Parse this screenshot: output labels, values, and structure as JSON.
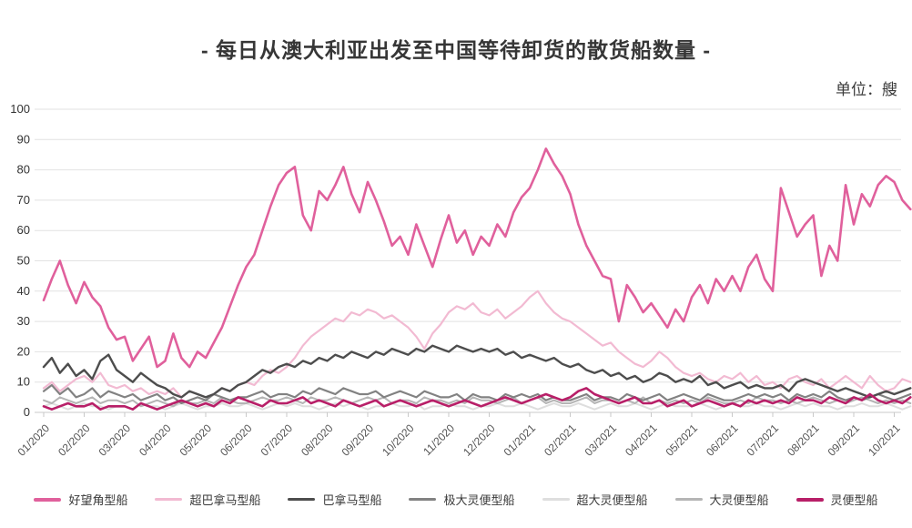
{
  "title": "- 每日从澳大利亚出发至中国等待卸货的散货船数量 -",
  "unit_label": "单位：艘",
  "chart_data": {
    "type": "line",
    "title": "每日从澳大利亚出发至中国等待卸货的散货船数量",
    "unit": "艘",
    "ylim": [
      0,
      100
    ],
    "y_ticks": [
      0,
      10,
      20,
      30,
      40,
      50,
      60,
      70,
      80,
      90,
      100
    ],
    "x_tick_labels": [
      "01/2020",
      "02/2020",
      "03/2020",
      "04/2020",
      "05/2020",
      "06/2020",
      "07/2020",
      "08/2020",
      "09/2020",
      "10/2020",
      "11/2020",
      "12/2020",
      "01/2021",
      "02/2021",
      "03/2021",
      "04/2021",
      "05/2021",
      "06/2021",
      "07/2021",
      "08/2021",
      "09/2021",
      "10/2021"
    ],
    "points_per_month": 5,
    "grid": "horizontal",
    "legend_position": "bottom",
    "grid_color": "#e2e2e2",
    "axis_color": "#c9c9c9",
    "series": [
      {
        "name": "好望角型船",
        "color": "#e0609c",
        "width": 2.6,
        "values": [
          37,
          44,
          50,
          42,
          36,
          43,
          38,
          35,
          28,
          24,
          25,
          17,
          21,
          25,
          15,
          17,
          26,
          18,
          15,
          20,
          18,
          23,
          28,
          35,
          42,
          48,
          52,
          60,
          68,
          75,
          79,
          81,
          65,
          60,
          73,
          70,
          75,
          81,
          72,
          66,
          76,
          70,
          63,
          55,
          58,
          52,
          62,
          55,
          48,
          57,
          65,
          56,
          60,
          52,
          58,
          55,
          62,
          58,
          66,
          71,
          74,
          80,
          87,
          82,
          78,
          72,
          62,
          55,
          50,
          45,
          44,
          30,
          42,
          38,
          33,
          36,
          32,
          28,
          34,
          30,
          38,
          42,
          36,
          44,
          40,
          45,
          40,
          48,
          52,
          44,
          40,
          74,
          66,
          58,
          62,
          65,
          45,
          55,
          50,
          75,
          62,
          72,
          68,
          75,
          78,
          76,
          70,
          67
        ]
      },
      {
        "name": "超巴拿马型船",
        "color": "#f2bad2",
        "width": 2.2,
        "values": [
          8,
          10,
          7,
          9,
          11,
          12,
          10,
          13,
          9,
          8,
          9,
          7,
          8,
          6,
          7,
          6,
          8,
          5,
          7,
          6,
          5,
          6,
          8,
          7,
          9,
          10,
          9,
          12,
          14,
          13,
          15,
          18,
          22,
          25,
          27,
          29,
          31,
          30,
          33,
          32,
          34,
          33,
          31,
          32,
          30,
          28,
          25,
          21,
          26,
          29,
          33,
          35,
          34,
          36,
          33,
          32,
          34,
          31,
          33,
          35,
          38,
          40,
          36,
          33,
          31,
          30,
          28,
          26,
          24,
          22,
          23,
          20,
          18,
          16,
          15,
          17,
          20,
          18,
          15,
          13,
          12,
          13,
          11,
          10,
          12,
          11,
          13,
          10,
          12,
          9,
          10,
          8,
          11,
          12,
          10,
          9,
          11,
          8,
          10,
          12,
          10,
          8,
          12,
          9,
          7,
          8,
          11,
          10
        ]
      },
      {
        "name": "巴拿马型船",
        "color": "#4d4d4d",
        "width": 2.4,
        "values": [
          15,
          18,
          13,
          16,
          12,
          14,
          11,
          17,
          19,
          14,
          12,
          10,
          13,
          11,
          9,
          8,
          6,
          5,
          7,
          6,
          5,
          6,
          8,
          7,
          9,
          10,
          12,
          14,
          13,
          15,
          16,
          15,
          17,
          16,
          18,
          17,
          19,
          18,
          20,
          19,
          18,
          20,
          19,
          21,
          20,
          19,
          21,
          20,
          22,
          21,
          20,
          22,
          21,
          20,
          21,
          20,
          21,
          19,
          20,
          18,
          19,
          18,
          17,
          18,
          16,
          15,
          16,
          14,
          13,
          14,
          12,
          13,
          11,
          12,
          10,
          11,
          13,
          12,
          10,
          11,
          10,
          12,
          9,
          10,
          8,
          9,
          10,
          8,
          9,
          8,
          8,
          9,
          7,
          10,
          11,
          10,
          9,
          8,
          7,
          8,
          7,
          6,
          5,
          6,
          7,
          6,
          7,
          8
        ]
      },
      {
        "name": "极大灵便型船",
        "color": "#828282",
        "width": 2.2,
        "values": [
          7,
          9,
          6,
          8,
          5,
          6,
          8,
          5,
          7,
          6,
          5,
          6,
          4,
          5,
          6,
          4,
          5,
          3,
          4,
          5,
          4,
          6,
          5,
          4,
          5,
          5,
          6,
          7,
          5,
          6,
          6,
          5,
          7,
          6,
          8,
          7,
          6,
          8,
          7,
          6,
          6,
          7,
          5,
          6,
          7,
          6,
          5,
          7,
          6,
          5,
          5,
          6,
          4,
          6,
          5,
          5,
          4,
          6,
          5,
          6,
          5,
          6,
          4,
          5,
          4,
          4,
          5,
          6,
          4,
          5,
          5,
          4,
          6,
          5,
          4,
          5,
          6,
          4,
          5,
          6,
          5,
          4,
          6,
          5,
          4,
          4,
          5,
          6,
          5,
          6,
          5,
          6,
          4,
          6,
          5,
          6,
          5,
          7,
          5,
          4,
          5,
          4,
          5,
          6,
          5,
          4,
          5,
          6
        ]
      },
      {
        "name": "超大灵便型船",
        "color": "#dedede",
        "width": 2,
        "values": [
          2,
          3,
          2,
          1,
          2,
          3,
          2,
          2,
          1,
          2,
          2,
          1,
          3,
          2,
          2,
          1,
          2,
          3,
          2,
          1,
          2,
          2,
          3,
          2,
          2,
          3,
          2,
          1,
          2,
          3,
          2,
          3,
          2,
          2,
          1,
          2,
          3,
          2,
          3,
          2,
          1,
          2,
          2,
          3,
          2,
          2,
          3,
          1,
          2,
          2,
          3,
          2,
          2,
          1,
          2,
          2,
          3,
          2,
          2,
          3,
          2,
          1,
          2,
          3,
          2,
          2,
          3,
          2,
          1,
          2,
          3,
          2,
          2,
          3,
          2,
          1,
          2,
          3,
          2,
          2,
          2,
          3,
          2,
          1,
          2,
          3,
          2,
          2,
          3,
          2,
          2,
          1,
          2,
          3,
          2,
          3,
          2,
          2,
          1,
          2,
          2,
          3,
          2,
          2,
          3,
          2,
          1,
          2
        ]
      },
      {
        "name": "大灵便型船",
        "color": "#b5b5b5",
        "width": 2,
        "values": [
          4,
          3,
          5,
          4,
          3,
          4,
          5,
          3,
          4,
          4,
          3,
          4,
          2,
          3,
          4,
          3,
          2,
          4,
          3,
          3,
          4,
          3,
          5,
          4,
          3,
          3,
          4,
          5,
          4,
          4,
          5,
          4,
          3,
          5,
          4,
          4,
          5,
          4,
          3,
          4,
          5,
          4,
          5,
          3,
          4,
          4,
          3,
          5,
          4,
          4,
          3,
          4,
          3,
          5,
          4,
          4,
          3,
          4,
          5,
          3,
          4,
          5,
          3,
          4,
          3,
          3,
          4,
          5,
          3,
          4,
          4,
          3,
          4,
          3,
          5,
          3,
          4,
          3,
          4,
          3,
          4,
          3,
          5,
          4,
          3,
          3,
          4,
          3,
          5,
          4,
          4,
          3,
          4,
          3,
          4,
          5,
          4,
          3,
          4,
          3,
          4,
          5,
          4,
          3,
          4,
          3,
          4,
          3
        ]
      },
      {
        "name": "灵便型船",
        "color": "#b81f68",
        "width": 2.6,
        "values": [
          2,
          1,
          2,
          3,
          2,
          2,
          3,
          1,
          2,
          2,
          2,
          1,
          3,
          2,
          1,
          2,
          3,
          4,
          3,
          2,
          3,
          2,
          4,
          3,
          5,
          4,
          3,
          2,
          4,
          3,
          3,
          4,
          5,
          3,
          4,
          3,
          2,
          4,
          3,
          2,
          3,
          4,
          2,
          3,
          4,
          3,
          2,
          3,
          4,
          3,
          2,
          3,
          4,
          3,
          2,
          3,
          4,
          5,
          4,
          3,
          4,
          5,
          6,
          5,
          4,
          5,
          7,
          8,
          6,
          5,
          4,
          3,
          4,
          5,
          3,
          3,
          4,
          2,
          3,
          4,
          2,
          3,
          4,
          3,
          2,
          3,
          2,
          4,
          3,
          4,
          3,
          4,
          3,
          5,
          4,
          4,
          3,
          5,
          4,
          3,
          5,
          4,
          6,
          4,
          3,
          4,
          3,
          5
        ]
      }
    ]
  }
}
